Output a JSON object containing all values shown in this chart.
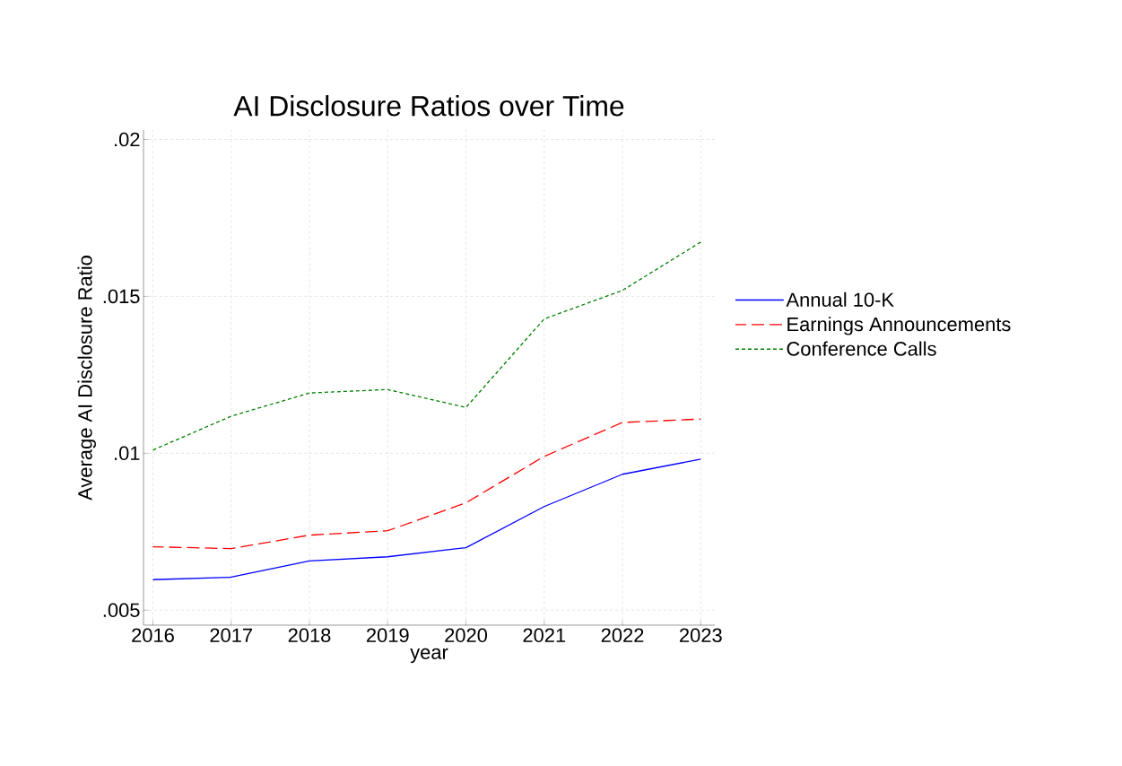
{
  "chart_data": {
    "type": "line",
    "title": "AI Disclosure Ratios over Time",
    "xlabel": "year",
    "ylabel": "Average AI Disclosure Ratio",
    "x": [
      2016,
      2017,
      2018,
      2019,
      2020,
      2021,
      2022,
      2023
    ],
    "series": [
      {
        "name": "Annual 10-K",
        "color": "#0000ff",
        "line_style": "solid",
        "values": [
          0.00597,
          0.00605,
          0.00657,
          0.0067,
          0.00699,
          0.0083,
          0.00933,
          0.00981
        ]
      },
      {
        "name": "Earnings Announcements",
        "color": "#ff0000",
        "line_style": "dashed",
        "values": [
          0.00702,
          0.00696,
          0.00739,
          0.00753,
          0.00842,
          0.0099,
          0.01098,
          0.01109
        ]
      },
      {
        "name": "Conference Calls",
        "color": "#008000",
        "line_style": "dotted",
        "values": [
          0.0101,
          0.01118,
          0.01192,
          0.01203,
          0.01146,
          0.01428,
          0.01519,
          0.01673
        ]
      }
    ],
    "xlim": [
      2015.88,
      2023.18
    ],
    "ylim": [
      0.00452,
      0.0203
    ],
    "xticks": [
      2016,
      2017,
      2018,
      2019,
      2020,
      2021,
      2022,
      2023
    ],
    "yticks": [
      {
        "value": 0.005,
        "label": ".005"
      },
      {
        "value": 0.01,
        "label": ".01"
      },
      {
        "value": 0.015,
        "label": ".015"
      },
      {
        "value": 0.02,
        "label": ".02"
      }
    ],
    "grid": true,
    "legend": "right"
  }
}
